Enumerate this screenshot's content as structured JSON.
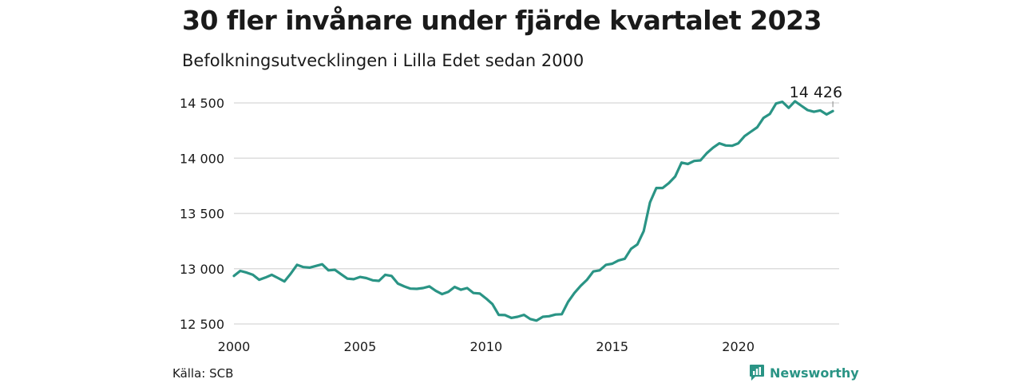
{
  "header": {
    "title": "30 fler invånare under fjärde kvartalet 2023",
    "subtitle": "Befolkningsutvecklingen i Lilla Edet sedan 2000"
  },
  "footer": {
    "source": "Källa: SCB",
    "brand": "Newsworthy",
    "brand_icon": "newsworthy-logo-icon"
  },
  "colors": {
    "line": "#2a9485",
    "grid": "#dddddd",
    "brand": "#2a9485"
  },
  "chart_data": {
    "type": "line",
    "title": "30 fler invånare under fjärde kvartalet 2023",
    "subtitle": "Befolkningsutvecklingen i Lilla Edet sedan 2000",
    "xlabel": "",
    "ylabel": "",
    "xlim": [
      2000,
      2024
    ],
    "ylim": [
      12500,
      14500
    ],
    "x_ticks": [
      2000,
      2005,
      2010,
      2015,
      2020
    ],
    "x_tick_labels": [
      "2000",
      "2005",
      "2010",
      "2015",
      "2020"
    ],
    "y_ticks": [
      12500,
      13000,
      13500,
      14000,
      14500
    ],
    "y_tick_labels": [
      "12 500",
      "13 000",
      "13 500",
      "14 000",
      "14 500"
    ],
    "grid": "horizontal",
    "legend": "none",
    "end_label": "14 426",
    "series": [
      {
        "x": [
          2000.0,
          2000.25,
          2000.5,
          2000.75,
          2001.0,
          2001.25,
          2001.5,
          2001.75,
          2002.0,
          2002.25,
          2002.5,
          2002.75,
          2003.0,
          2003.25,
          2003.5,
          2003.75,
          2004.0,
          2004.25,
          2004.5,
          2004.75,
          2005.0,
          2005.25,
          2005.5,
          2005.75,
          2006.0,
          2006.25,
          2006.5,
          2006.75,
          2007.0,
          2007.25,
          2007.5,
          2007.75,
          2008.0,
          2008.25,
          2008.5,
          2008.75,
          2009.0,
          2009.25,
          2009.5,
          2009.75,
          2010.0,
          2010.25,
          2010.5,
          2010.75,
          2011.0,
          2011.25,
          2011.5,
          2011.75,
          2012.0,
          2012.25,
          2012.5,
          2012.75,
          2013.0,
          2013.25,
          2013.5,
          2013.75,
          2014.0,
          2014.25,
          2014.5,
          2014.75,
          2015.0,
          2015.25,
          2015.5,
          2015.75,
          2016.0,
          2016.25,
          2016.5,
          2016.75,
          2017.0,
          2017.25,
          2017.5,
          2017.75,
          2018.0,
          2018.25,
          2018.5,
          2018.75,
          2019.0,
          2019.25,
          2019.5,
          2019.75,
          2020.0,
          2020.25,
          2020.5,
          2020.75,
          2021.0,
          2021.25,
          2021.5,
          2021.75,
          2022.0,
          2022.25,
          2022.5,
          2022.75,
          2023.0,
          2023.25,
          2023.5,
          2023.75
        ],
        "values": [
          12935,
          12980,
          12965,
          12945,
          12900,
          12920,
          12945,
          12915,
          12885,
          12955,
          13035,
          13015,
          13010,
          13025,
          13040,
          12985,
          12990,
          12950,
          12910,
          12905,
          12925,
          12915,
          12895,
          12890,
          12945,
          12935,
          12865,
          12840,
          12820,
          12818,
          12825,
          12840,
          12800,
          12770,
          12790,
          12835,
          12810,
          12825,
          12780,
          12775,
          12730,
          12680,
          12582,
          12580,
          12555,
          12565,
          12582,
          12545,
          12530,
          12565,
          12570,
          12585,
          12588,
          12700,
          12780,
          12845,
          12900,
          12975,
          12985,
          13035,
          13045,
          13075,
          13090,
          13180,
          13220,
          13340,
          13600,
          13730,
          13730,
          13775,
          13835,
          13960,
          13948,
          13975,
          13980,
          14045,
          14095,
          14135,
          14115,
          14112,
          14135,
          14200,
          14240,
          14280,
          14365,
          14400,
          14495,
          14510,
          14455,
          14515,
          14475,
          14435,
          14420,
          14432,
          14396,
          14426
        ]
      }
    ]
  }
}
